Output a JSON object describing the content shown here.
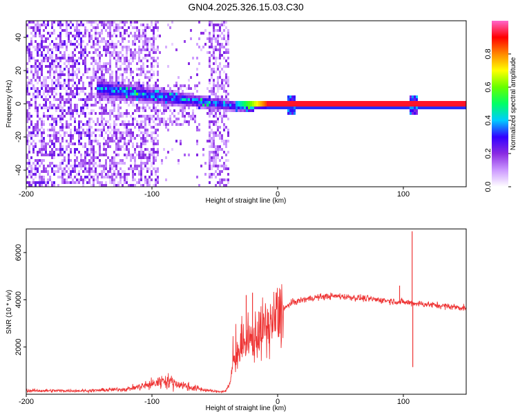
{
  "title": "GN04.2025.326.15.03.C30",
  "chart_data": [
    {
      "type": "heatmap",
      "xlabel": "Height of straight line (km)",
      "ylabel": "Frequency (Hz)",
      "xlim": [
        -200,
        150
      ],
      "ylim": [
        -50,
        50
      ],
      "xticks": [
        -200,
        -100,
        0,
        100
      ],
      "yticks": [
        -40,
        -20,
        0,
        20,
        40
      ],
      "colorbar": {
        "label": "Normalized spectral amplitude",
        "range": [
          0,
          1
        ],
        "ticks": [
          "0.0",
          "0.2",
          "0.4",
          "0.6",
          "0.8"
        ],
        "colormap": [
          "#ffffff",
          "#cc99ff",
          "#8a2be2",
          "#3300ff",
          "#00ccff",
          "#00ff66",
          "#66ff00",
          "#ffff00",
          "#ff8800",
          "#ff0000",
          "#ff66cc"
        ]
      },
      "features": {
        "noise_region_x": [
          -200,
          -40
        ],
        "gap_region_x": [
          -95,
          -65
        ],
        "ridge_x": [
          -145,
          -20
        ],
        "ridge_freq_range_hz": [
          -3,
          12
        ],
        "strong_band_x": [
          -35,
          150
        ],
        "strong_band_freq_hz": 0.5,
        "hotspots_x": [
          10,
          107
        ]
      },
      "grid": false
    },
    {
      "type": "line",
      "xlabel": "Height of straight line (km)",
      "ylabel": "SNR (10 * v/v)",
      "xlim": [
        -200,
        150
      ],
      "ylim": [
        0,
        7000
      ],
      "xticks": [
        -200,
        -100,
        0,
        100
      ],
      "yticks": [
        2000,
        4000,
        6000
      ],
      "color": "#ee3333",
      "envelope": {
        "x": [
          -200,
          -150,
          -120,
          -100,
          -90,
          -80,
          -70,
          -60,
          -50,
          -42,
          -38,
          -35,
          -30,
          -25,
          -20,
          -15,
          -10,
          -5,
          0,
          10,
          20,
          30,
          40,
          50,
          60,
          70,
          80,
          90,
          100,
          110,
          120,
          130,
          140,
          150
        ],
        "y": [
          150,
          150,
          220,
          420,
          600,
          450,
          300,
          200,
          120,
          120,
          400,
          1500,
          1900,
          2100,
          2300,
          2600,
          2800,
          3000,
          3300,
          3850,
          4000,
          4100,
          4150,
          4150,
          4100,
          4050,
          4000,
          3950,
          3900,
          3850,
          3800,
          3750,
          3700,
          3650
        ]
      },
      "spikes": [
        {
          "x": -25,
          "y": 4200
        },
        {
          "x": -20,
          "y": 4300
        },
        {
          "x": -15,
          "y": 3500
        },
        {
          "x": 97,
          "y": 4600
        },
        {
          "x": 107,
          "y": 6900
        },
        {
          "x": 107.5,
          "y": 1150
        }
      ],
      "grid": false
    }
  ]
}
